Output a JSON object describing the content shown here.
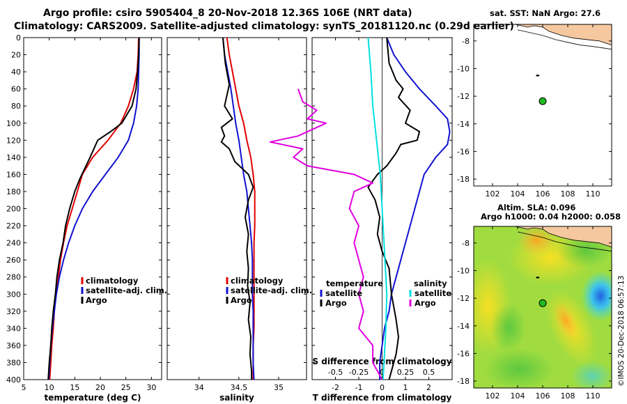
{
  "header": {
    "title_line1": "Argo profile: csiro 5905404_8 20-Nov-2018 12.36S 106E (NRT data)",
    "title_line2": "Climatology: CARS2009. Satellite-adjusted climatology: synTS_20181120.nc (0.29d earlier)",
    "sst_title": "sat. SST: NaN Argo: 27.6",
    "sla_line1": "Altim. SLA: 0.096",
    "sla_line2": "Argo h1000: 0.04 h2000: 0.058",
    "watermark": "©IMOS 20-Dec-2018 06:57:13"
  },
  "colors": {
    "climatology": "#e00000",
    "satellite": "#1010d0",
    "argo": "#000000",
    "satellite_salinity": "#00e0e0",
    "argo_salinity_diff": "#e000e0",
    "land": "#f5c8a0",
    "point": "#22bb22"
  },
  "chart_data": [
    {
      "type": "line",
      "id": "temperature",
      "xlabel": "temperature (deg C)",
      "ylabel": "",
      "xlim": [
        5,
        32
      ],
      "ylim": [
        400,
        0
      ],
      "xticks": [
        5,
        10,
        15,
        20,
        25,
        30
      ],
      "yticks": [
        0,
        20,
        40,
        60,
        80,
        100,
        120,
        140,
        160,
        180,
        200,
        220,
        240,
        260,
        280,
        300,
        320,
        340,
        360,
        380,
        400
      ],
      "legend": [
        "climatology",
        "satellite-adj. clim.",
        "Argo"
      ],
      "series": [
        {
          "name": "climatology",
          "color": "#e00000",
          "points": [
            [
              27.5,
              0
            ],
            [
              27.4,
              20
            ],
            [
              27.2,
              40
            ],
            [
              26.5,
              60
            ],
            [
              25.5,
              80
            ],
            [
              24.0,
              100
            ],
            [
              21.5,
              120
            ],
            [
              18.5,
              140
            ],
            [
              16.5,
              160
            ],
            [
              15.5,
              180
            ],
            [
              14.5,
              200
            ],
            [
              13.5,
              220
            ],
            [
              12.8,
              240
            ],
            [
              12.2,
              260
            ],
            [
              11.8,
              280
            ],
            [
              11.3,
              300
            ],
            [
              11.0,
              320
            ],
            [
              10.8,
              340
            ],
            [
              10.5,
              360
            ],
            [
              10.3,
              380
            ],
            [
              10.1,
              400
            ]
          ]
        },
        {
          "name": "satellite-adj. clim.",
          "color": "#1010d0",
          "points": [
            [
              27.6,
              0
            ],
            [
              27.6,
              20
            ],
            [
              27.5,
              40
            ],
            [
              27.4,
              60
            ],
            [
              27.1,
              80
            ],
            [
              26.5,
              100
            ],
            [
              25.5,
              120
            ],
            [
              23.5,
              140
            ],
            [
              21.0,
              160
            ],
            [
              18.5,
              180
            ],
            [
              16.5,
              200
            ],
            [
              15.0,
              220
            ],
            [
              13.8,
              240
            ],
            [
              12.8,
              260
            ],
            [
              12.0,
              280
            ],
            [
              11.4,
              300
            ],
            [
              11.0,
              320
            ],
            [
              10.6,
              340
            ],
            [
              10.3,
              360
            ],
            [
              10.1,
              380
            ],
            [
              9.9,
              400
            ]
          ]
        },
        {
          "name": "Argo",
          "color": "#000000",
          "points": [
            [
              27.6,
              0
            ],
            [
              27.5,
              20
            ],
            [
              27.3,
              40
            ],
            [
              27.0,
              60
            ],
            [
              26.2,
              80
            ],
            [
              24.2,
              100
            ],
            [
              22.0,
              110
            ],
            [
              19.5,
              120
            ],
            [
              18.0,
              140
            ],
            [
              17.2,
              150
            ],
            [
              16.0,
              165
            ],
            [
              15.0,
              180
            ],
            [
              14.0,
              200
            ],
            [
              13.2,
              220
            ],
            [
              12.7,
              240
            ],
            [
              12.0,
              260
            ],
            [
              11.5,
              280
            ],
            [
              11.2,
              300
            ],
            [
              10.8,
              320
            ],
            [
              10.5,
              340
            ],
            [
              10.3,
              360
            ],
            [
              10.0,
              380
            ],
            [
              9.8,
              400
            ]
          ]
        }
      ]
    },
    {
      "type": "line",
      "id": "salinity",
      "xlabel": "salinity",
      "xlim": [
        33.6,
        35.35
      ],
      "ylim": [
        400,
        0
      ],
      "xticks": [
        34,
        34.5,
        35
      ],
      "xticklabels": [
        "34",
        "34.5",
        "35"
      ],
      "legend": [
        "climatology",
        "satellite-adj. clim.",
        "Argo"
      ],
      "series": [
        {
          "name": "climatology",
          "color": "#e00000",
          "points": [
            [
              34.35,
              0
            ],
            [
              34.38,
              20
            ],
            [
              34.42,
              40
            ],
            [
              34.46,
              60
            ],
            [
              34.5,
              80
            ],
            [
              34.56,
              100
            ],
            [
              34.6,
              120
            ],
            [
              34.65,
              140
            ],
            [
              34.68,
              160
            ],
            [
              34.7,
              180
            ],
            [
              34.7,
              200
            ],
            [
              34.7,
              220
            ],
            [
              34.69,
              240
            ],
            [
              34.69,
              260
            ],
            [
              34.69,
              280
            ],
            [
              34.69,
              300
            ],
            [
              34.69,
              320
            ],
            [
              34.69,
              340
            ],
            [
              34.68,
              360
            ],
            [
              34.68,
              380
            ],
            [
              34.68,
              400
            ]
          ]
        },
        {
          "name": "satellite-adj. clim.",
          "color": "#1010d0",
          "points": [
            [
              34.3,
              0
            ],
            [
              34.32,
              20
            ],
            [
              34.36,
              40
            ],
            [
              34.4,
              60
            ],
            [
              34.43,
              80
            ],
            [
              34.46,
              100
            ],
            [
              34.5,
              120
            ],
            [
              34.53,
              140
            ],
            [
              34.56,
              160
            ],
            [
              34.6,
              180
            ],
            [
              34.62,
              200
            ],
            [
              34.64,
              220
            ],
            [
              34.66,
              240
            ],
            [
              34.67,
              260
            ],
            [
              34.67,
              280
            ],
            [
              34.67,
              300
            ],
            [
              34.68,
              320
            ],
            [
              34.68,
              340
            ],
            [
              34.68,
              360
            ],
            [
              34.68,
              380
            ],
            [
              34.69,
              400
            ]
          ]
        },
        {
          "name": "Argo",
          "color": "#000000",
          "points": [
            [
              34.3,
              0
            ],
            [
              34.33,
              30
            ],
            [
              34.38,
              55
            ],
            [
              34.32,
              80
            ],
            [
              34.42,
              95
            ],
            [
              34.28,
              105
            ],
            [
              34.32,
              115
            ],
            [
              34.28,
              122
            ],
            [
              34.38,
              130
            ],
            [
              34.45,
              145
            ],
            [
              34.62,
              160
            ],
            [
              34.68,
              175
            ],
            [
              34.62,
              190
            ],
            [
              34.58,
              210
            ],
            [
              34.62,
              230
            ],
            [
              34.6,
              250
            ],
            [
              34.62,
              270
            ],
            [
              34.61,
              290
            ],
            [
              34.64,
              310
            ],
            [
              34.62,
              330
            ],
            [
              34.65,
              350
            ],
            [
              34.64,
              370
            ],
            [
              34.66,
              390
            ],
            [
              34.66,
              400
            ]
          ]
        }
      ]
    },
    {
      "type": "line",
      "id": "difference",
      "xlabel": "T difference from climatology",
      "top_axis_label": "S difference from climatology",
      "xlim": [
        -3,
        3
      ],
      "ylim": [
        400,
        0
      ],
      "xticks": [
        -2,
        -1,
        0,
        1,
        2
      ],
      "top_xticks": [
        -0.5,
        -0.25,
        0,
        0.25,
        0.5
      ],
      "top_xticklabels": [
        "-0.5",
        "-0.25",
        "0",
        "0.25",
        "0.5"
      ],
      "legend_left_title": "temperature",
      "legend_left": [
        "satellite",
        "Argo"
      ],
      "legend_right_title": "salinity",
      "legend_right": [
        "satellite",
        "Argo"
      ],
      "series": [
        {
          "name": "temperature satellite",
          "color": "#1010d0",
          "points": [
            [
              0.2,
              0
            ],
            [
              0.5,
              20
            ],
            [
              1.0,
              40
            ],
            [
              1.6,
              60
            ],
            [
              2.3,
              80
            ],
            [
              2.8,
              95
            ],
            [
              2.9,
              110
            ],
            [
              2.8,
              125
            ],
            [
              2.3,
              140
            ],
            [
              1.8,
              160
            ],
            [
              1.6,
              180
            ],
            [
              1.4,
              200
            ],
            [
              1.2,
              220
            ],
            [
              1.0,
              240
            ],
            [
              0.8,
              260
            ],
            [
              0.6,
              280
            ],
            [
              0.4,
              300
            ],
            [
              0.3,
              320
            ],
            [
              0.1,
              340
            ],
            [
              0.0,
              360
            ],
            [
              -0.1,
              380
            ],
            [
              -0.1,
              400
            ]
          ]
        },
        {
          "name": "temperature Argo",
          "color": "#000000",
          "points": [
            [
              0.2,
              0
            ],
            [
              0.3,
              30
            ],
            [
              0.6,
              50
            ],
            [
              0.9,
              60
            ],
            [
              0.7,
              70
            ],
            [
              1.2,
              85
            ],
            [
              1.0,
              100
            ],
            [
              1.6,
              110
            ],
            [
              1.5,
              120
            ],
            [
              0.8,
              125
            ],
            [
              0.6,
              135
            ],
            [
              0.2,
              150
            ],
            [
              -0.2,
              160
            ],
            [
              -0.6,
              175
            ],
            [
              -0.3,
              190
            ],
            [
              -0.1,
              210
            ],
            [
              -0.2,
              230
            ],
            [
              0.0,
              250
            ],
            [
              0.3,
              270
            ],
            [
              0.4,
              300
            ],
            [
              0.6,
              330
            ],
            [
              0.7,
              350
            ],
            [
              0.6,
              370
            ],
            [
              0.4,
              390
            ],
            [
              0.3,
              400
            ]
          ]
        },
        {
          "name": "salinity satellite",
          "color": "#00e0e0",
          "points": [
            [
              -0.15,
              0
            ],
            [
              -0.12,
              40
            ],
            [
              -0.1,
              80
            ],
            [
              -0.06,
              120
            ],
            [
              -0.02,
              160
            ],
            [
              0.0,
              200
            ],
            [
              0.02,
              240
            ],
            [
              0.04,
              280
            ],
            [
              0.05,
              300
            ],
            [
              0.04,
              340
            ],
            [
              0.02,
              380
            ],
            [
              0.01,
              400
            ]
          ]
        },
        {
          "name": "salinity Argo",
          "color": "#e000e0",
          "points": [
            [
              -0.9,
              60
            ],
            [
              -0.85,
              75
            ],
            [
              -0.7,
              85
            ],
            [
              -0.8,
              95
            ],
            [
              -0.6,
              100
            ],
            [
              -0.9,
              115
            ],
            [
              -1.2,
              122
            ],
            [
              -0.85,
              130
            ],
            [
              -0.95,
              140
            ],
            [
              -0.8,
              150
            ],
            [
              -0.3,
              160
            ],
            [
              -0.1,
              170
            ],
            [
              -0.3,
              180
            ],
            [
              -0.35,
              200
            ],
            [
              -0.25,
              220
            ],
            [
              -0.3,
              240
            ],
            [
              -0.25,
              260
            ],
            [
              -0.2,
              280
            ],
            [
              -0.25,
              300
            ],
            [
              -0.2,
              320
            ],
            [
              -0.25,
              340
            ],
            [
              -0.1,
              360
            ],
            [
              -0.1,
              380
            ],
            [
              0.0,
              400
            ]
          ]
        }
      ]
    },
    {
      "type": "map",
      "id": "sst-map",
      "xlim": [
        100.5,
        111.5
      ],
      "ylim": [
        -18.5,
        -6.8
      ],
      "xticks": [
        102,
        104,
        106,
        108,
        110
      ],
      "yticks": [
        -8,
        -10,
        -12,
        -14,
        -16,
        -18
      ],
      "float_position": [
        106,
        -12.36
      ]
    },
    {
      "type": "heatmap",
      "id": "sla-map",
      "xlim": [
        100.5,
        111.5
      ],
      "ylim": [
        -18.5,
        -6.8
      ],
      "xticks": [
        102,
        104,
        106,
        108,
        110
      ],
      "yticks": [
        -8,
        -10,
        -12,
        -14,
        -16,
        -18
      ],
      "float_position": [
        106,
        -12.36
      ]
    }
  ]
}
